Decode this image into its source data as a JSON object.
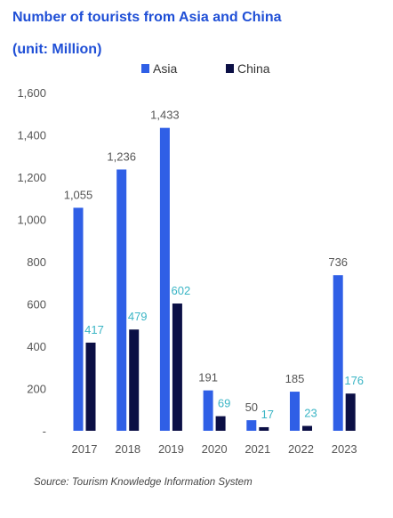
{
  "header": {
    "title": "Number of tourists from Asia and China",
    "subtitle": "(unit: Million)"
  },
  "footer": {
    "source": "Source: Tourism Knowledge Information System"
  },
  "colors": {
    "title": "#1f4fd6",
    "asia": "#2f5fe6",
    "china": "#0b0f45",
    "asia_label": "#555555",
    "china_label": "#3ab5c5",
    "axis_text": "#555555"
  },
  "chart_data": {
    "type": "bar",
    "title": "Number of tourists from Asia and China",
    "subtitle": "(unit: Million)",
    "categories": [
      "2017",
      "2018",
      "2019",
      "2020",
      "2021",
      "2022",
      "2023"
    ],
    "series": [
      {
        "name": "Asia",
        "values": [
          1055,
          1236,
          1433,
          191,
          50,
          185,
          736
        ],
        "labels": [
          "1,055",
          "1,236",
          "1,433",
          "191",
          "50",
          "185",
          "736"
        ]
      },
      {
        "name": "China",
        "values": [
          417,
          479,
          602,
          69,
          17,
          23,
          176
        ],
        "labels": [
          "417",
          "479",
          "602",
          "69",
          "17",
          "23",
          "176"
        ]
      }
    ],
    "yticks": [
      "-",
      "200",
      "400",
      "600",
      "800",
      "1,000",
      "1,200",
      "1,400",
      "1,600"
    ],
    "ylim": [
      0,
      1600
    ],
    "grid": false,
    "legend": "top-center"
  }
}
